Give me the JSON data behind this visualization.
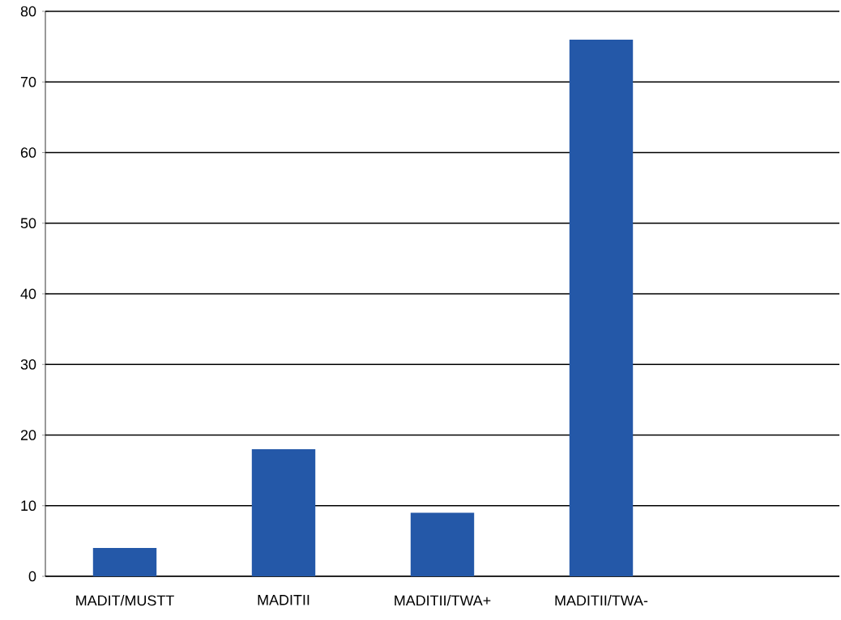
{
  "chart_data": {
    "type": "bar",
    "categories": [
      "MADIT/MUSTT",
      "MADITII",
      "MADITII/TWA+",
      "MADITII/TWA-",
      null
    ],
    "values": [
      4,
      18,
      9,
      76,
      null
    ],
    "color": "#2458a8",
    "ylim": [
      0,
      80
    ],
    "yticks": [
      0,
      10,
      20,
      30,
      40,
      50,
      60,
      70,
      80
    ],
    "grid": "y"
  }
}
